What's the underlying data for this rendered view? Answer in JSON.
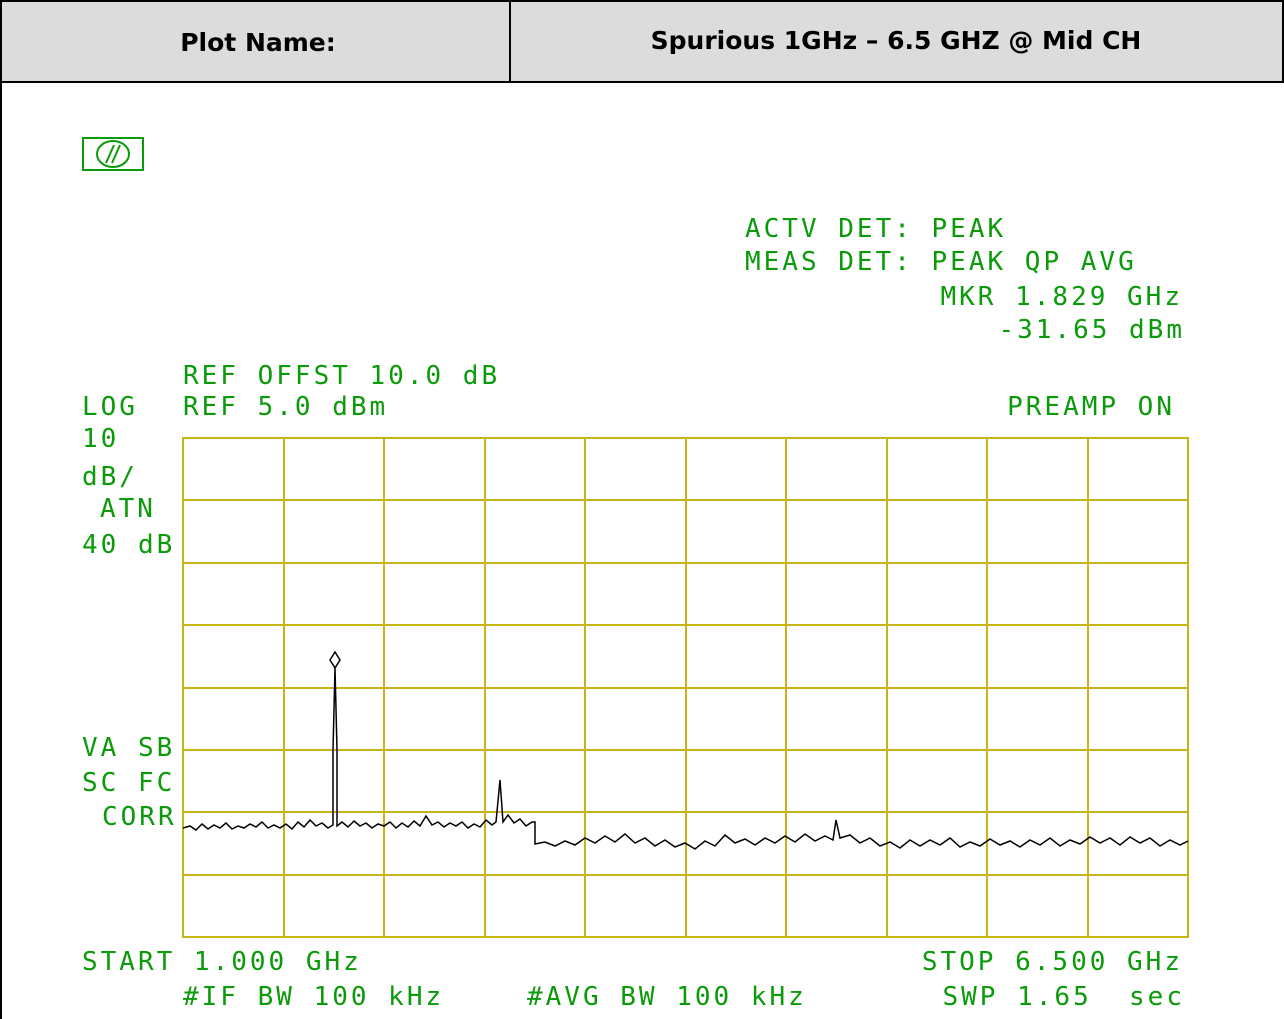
{
  "header": {
    "label": "Plot Name:",
    "value": "Spurious 1GHz – 6.5 GHZ @ Mid CH"
  },
  "plot": {
    "detector": [
      "ACTV DET: PEAK",
      "MEAS DET: PEAK QP AVG"
    ],
    "marker": [
      "MKR 1.829 GHz",
      "-31.65 dBm"
    ],
    "ref_offset": "REF OFFST 10.0 dB",
    "scale": "LOG",
    "ref_level": "REF 5.0 dBm",
    "preamp": "PREAMP ON",
    "left_labels": [
      "10",
      "dB/",
      "ATN",
      "40 dB"
    ],
    "corr_labels": [
      "VA SB",
      "SC FC",
      "CORR"
    ],
    "start": "START 1.000 GHz",
    "stop": "STOP 6.500 GHz",
    "if_bw": "#IF BW 100 kHz",
    "avg_bw": "#AVG BW 100 kHz",
    "sweep": "SWP 1.65  sec"
  }
}
